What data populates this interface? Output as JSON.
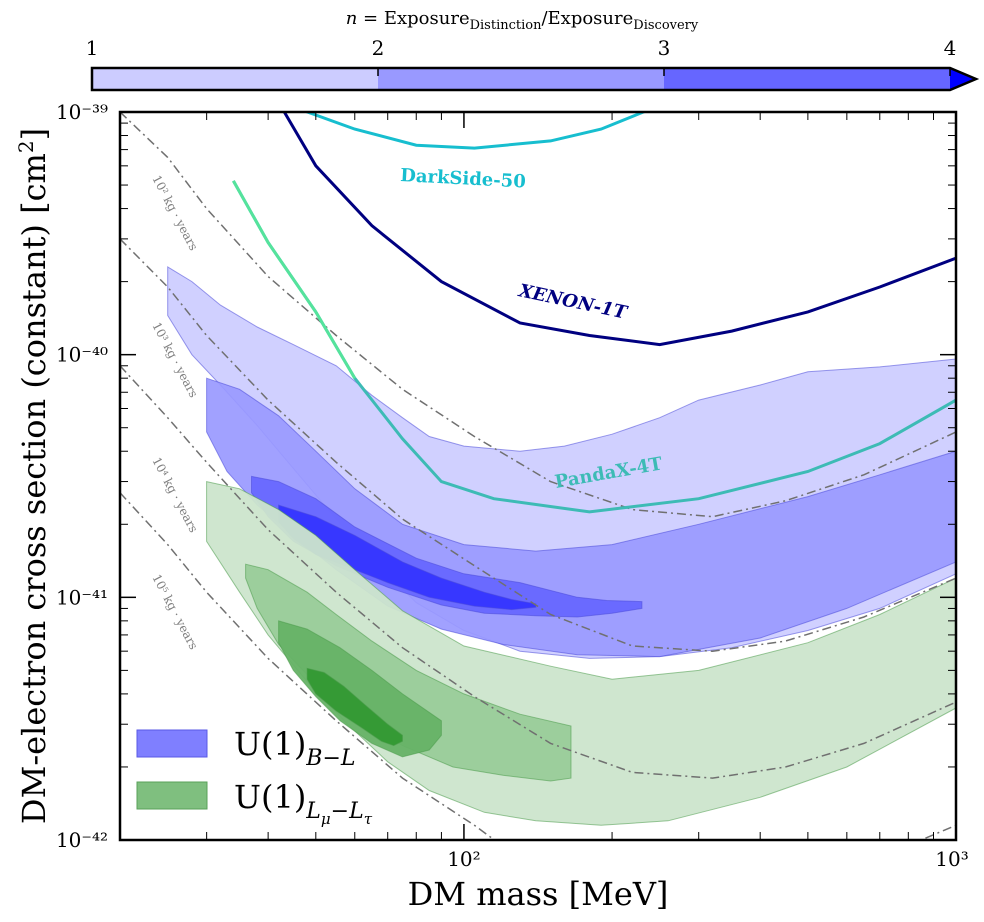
{
  "chart_data": {
    "type": "area",
    "xlabel": "DM mass [MeV]",
    "ylabel": "DM-electron cross section (constant) [cm²]",
    "xscale": "log",
    "yscale": "log",
    "xlim": [
      20,
      1000
    ],
    "ylim": [
      1e-42,
      1e-39
    ],
    "x_ticks": [
      {
        "value": 100,
        "label": "10²"
      },
      {
        "value": 1000,
        "label": "10³"
      }
    ],
    "y_ticks": [
      {
        "value": 1e-39,
        "label": "10⁻³⁹"
      },
      {
        "value": 1e-40,
        "label": "10⁻⁴⁰"
      },
      {
        "value": 1e-41,
        "label": "10⁻⁴¹"
      },
      {
        "value": 1e-42,
        "label": "10⁻⁴²"
      }
    ],
    "colorbar": {
      "title": "n = Exposure_Distinction / Exposure_Discovery",
      "ticks": [
        "1",
        "2",
        "3",
        "4"
      ],
      "colors": [
        "#ccccff",
        "#9999ff",
        "#6666ff",
        "#0000ff"
      ]
    },
    "legend": {
      "placement": "lower-left",
      "entries": [
        {
          "label": "U(1)B−L",
          "color": "#7f7fff"
        },
        {
          "label": "U(1)Lμ−Lτ",
          "color": "#7fbf7f"
        }
      ]
    },
    "experiments": [
      {
        "name": "DarkSide-50",
        "color": "#17becf",
        "points": [
          [
            45,
            1.05e-39
          ],
          [
            60,
            8.5e-40
          ],
          [
            80,
            7.3e-40
          ],
          [
            105,
            7.1e-40
          ],
          [
            150,
            7.6e-40
          ],
          [
            190,
            8.5e-40
          ],
          [
            240,
            1.03e-39
          ]
        ]
      },
      {
        "name": "XENON-1T",
        "color": "#000080",
        "points": [
          [
            40,
            1.3e-39
          ],
          [
            50,
            6e-40
          ],
          [
            65,
            3.4e-40
          ],
          [
            90,
            2e-40
          ],
          [
            130,
            1.35e-40
          ],
          [
            180,
            1.2e-40
          ],
          [
            250,
            1.1e-40
          ],
          [
            350,
            1.25e-40
          ],
          [
            500,
            1.5e-40
          ],
          [
            700,
            1.9e-40
          ],
          [
            1000,
            2.5e-40
          ]
        ]
      },
      {
        "name": "PandaX-4T",
        "color": "#3dbbb5",
        "points": [
          [
            34,
            5.2e-40
          ],
          [
            40,
            2.9e-40
          ],
          [
            50,
            1.5e-40
          ],
          [
            60,
            8e-41
          ],
          [
            75,
            4.5e-41
          ],
          [
            90,
            3e-41
          ],
          [
            115,
            2.55e-41
          ],
          [
            180,
            2.25e-41
          ],
          [
            300,
            2.55e-41
          ],
          [
            500,
            3.3e-41
          ],
          [
            700,
            4.3e-41
          ],
          [
            1000,
            6.5e-41
          ]
        ]
      }
    ],
    "exposure_contours": [
      {
        "label": "10² kg · years",
        "points": [
          [
            20,
            1e-39
          ],
          [
            25,
            6.5e-40
          ],
          [
            30,
            4e-40
          ],
          [
            40,
            2.1e-40
          ],
          [
            55,
            1.2e-40
          ],
          [
            75,
            7.2e-41
          ],
          [
            105,
            4.6e-41
          ],
          [
            150,
            3e-41
          ],
          [
            220,
            2.3e-41
          ],
          [
            320,
            2.15e-41
          ],
          [
            450,
            2.5e-41
          ],
          [
            650,
            3.2e-41
          ],
          [
            1000,
            4.8e-41
          ]
        ]
      },
      {
        "label": "10³ kg · years",
        "points": [
          [
            20,
            3e-40
          ],
          [
            25,
            1.9e-40
          ],
          [
            30,
            1.2e-40
          ],
          [
            40,
            6.5e-41
          ],
          [
            55,
            3.6e-41
          ],
          [
            75,
            2.1e-41
          ],
          [
            105,
            1.35e-41
          ],
          [
            150,
            8.5e-42
          ],
          [
            220,
            6.3e-42
          ],
          [
            320,
            6e-42
          ],
          [
            450,
            6.6e-42
          ],
          [
            650,
            8.3e-42
          ],
          [
            1000,
            1.2e-41
          ]
        ]
      },
      {
        "label": "10⁴ kg · years",
        "points": [
          [
            20,
            9e-41
          ],
          [
            25,
            5.5e-41
          ],
          [
            30,
            3.6e-41
          ],
          [
            40,
            1.9e-41
          ],
          [
            55,
            1.05e-41
          ],
          [
            75,
            6.2e-42
          ],
          [
            105,
            3.9e-42
          ],
          [
            150,
            2.5e-42
          ],
          [
            220,
            1.9e-42
          ],
          [
            320,
            1.8e-42
          ],
          [
            450,
            2e-42
          ],
          [
            650,
            2.5e-42
          ],
          [
            1000,
            3.7e-42
          ]
        ]
      },
      {
        "label": "10⁵ kg · years",
        "points": [
          [
            20,
            2.7e-41
          ],
          [
            25,
            1.65e-41
          ],
          [
            30,
            1.05e-41
          ],
          [
            40,
            5.6e-42
          ],
          [
            55,
            3.1e-42
          ],
          [
            75,
            1.8e-42
          ],
          [
            105,
            1.15e-42
          ],
          [
            140,
            7.5e-43
          ]
        ]
      },
      {
        "label": "",
        "points": [
          [
            620,
            8e-43
          ],
          [
            800,
            9.5e-43
          ],
          [
            1000,
            1.15e-42
          ]
        ]
      }
    ],
    "regions": [
      {
        "series": "U(1)B−L",
        "level": 1,
        "color": "#ccccff",
        "upper": [
          [
            25,
            2.3e-40
          ],
          [
            28,
            2e-40
          ],
          [
            32,
            1.6e-40
          ],
          [
            38,
            1.3e-40
          ],
          [
            45,
            1.1e-40
          ],
          [
            55,
            9e-41
          ],
          [
            65,
            6.8e-41
          ],
          [
            75,
            5.5e-41
          ],
          [
            85,
            4.6e-41
          ],
          [
            100,
            4.2e-41
          ],
          [
            130,
            4e-41
          ],
          [
            160,
            4.2e-41
          ],
          [
            200,
            4.7e-41
          ],
          [
            250,
            5.5e-41
          ],
          [
            300,
            6.5e-41
          ],
          [
            400,
            7.5e-41
          ],
          [
            500,
            8.5e-41
          ],
          [
            700,
            8.9e-41
          ],
          [
            1000,
            9.6e-41
          ]
        ],
        "lower": [
          [
            25,
            1.45e-40
          ],
          [
            28,
            1e-40
          ],
          [
            32,
            7.5e-41
          ],
          [
            38,
            5.1e-41
          ],
          [
            45,
            3.4e-41
          ],
          [
            55,
            2.1e-41
          ],
          [
            65,
            1.45e-41
          ],
          [
            80,
            9.5e-42
          ],
          [
            100,
            7.3e-42
          ],
          [
            130,
            6e-42
          ],
          [
            180,
            5.6e-42
          ],
          [
            250,
            5.7e-42
          ],
          [
            350,
            6.2e-42
          ],
          [
            500,
            7.3e-42
          ],
          [
            700,
            9e-42
          ],
          [
            1000,
            1.25e-41
          ]
        ]
      },
      {
        "series": "U(1)B−L",
        "level": 2,
        "color": "#9999ff",
        "upper": [
          [
            30,
            8e-41
          ],
          [
            35,
            7.2e-41
          ],
          [
            42,
            5.6e-41
          ],
          [
            50,
            4e-41
          ],
          [
            60,
            2.8e-41
          ],
          [
            75,
            2e-41
          ],
          [
            100,
            1.65e-41
          ],
          [
            140,
            1.55e-41
          ],
          [
            200,
            1.65e-41
          ],
          [
            300,
            2e-41
          ],
          [
            500,
            2.6e-41
          ],
          [
            700,
            3.2e-41
          ],
          [
            1000,
            4e-41
          ]
        ],
        "lower": [
          [
            30,
            4.8e-41
          ],
          [
            33,
            3.3e-41
          ],
          [
            38,
            2.4e-41
          ],
          [
            45,
            1.8e-41
          ],
          [
            55,
            1.3e-41
          ],
          [
            70,
            9.2e-42
          ],
          [
            90,
            7.4e-42
          ],
          [
            120,
            6.4e-42
          ],
          [
            170,
            5.8e-42
          ],
          [
            250,
            5.7e-42
          ],
          [
            400,
            6.8e-42
          ],
          [
            600,
            9e-42
          ],
          [
            1000,
            1.4e-41
          ]
        ]
      },
      {
        "series": "U(1)B−L",
        "level": 3,
        "color": "#6666ff",
        "upper": [
          [
            37,
            3.15e-41
          ],
          [
            42,
            3e-41
          ],
          [
            50,
            2.55e-41
          ],
          [
            60,
            1.95e-41
          ],
          [
            80,
            1.45e-41
          ],
          [
            100,
            1.25e-41
          ],
          [
            130,
            1.15e-41
          ],
          [
            170,
            1e-41
          ],
          [
            195,
            9.7e-42
          ],
          [
            230,
            9.6e-42
          ]
        ],
        "lower": [
          [
            37,
            2.7e-41
          ],
          [
            40,
            2.15e-41
          ],
          [
            45,
            1.7e-41
          ],
          [
            55,
            1.35e-41
          ],
          [
            70,
            1.1e-41
          ],
          [
            90,
            9.3e-42
          ],
          [
            110,
            8.6e-42
          ],
          [
            140,
            8.4e-42
          ],
          [
            170,
            8.3e-42
          ],
          [
            200,
            8.6e-42
          ],
          [
            230,
            9e-42
          ]
        ]
      },
      {
        "series": "U(1)B−L",
        "level": 4,
        "color": "#3333ff",
        "upper": [
          [
            42,
            2.4e-41
          ],
          [
            50,
            2.15e-41
          ],
          [
            60,
            1.8e-41
          ],
          [
            75,
            1.4e-41
          ],
          [
            90,
            1.2e-41
          ],
          [
            110,
            1.05e-41
          ],
          [
            125,
            9.8e-42
          ],
          [
            140,
            9.4e-42
          ]
        ],
        "lower": [
          [
            42,
            2.05e-41
          ],
          [
            45,
            1.75e-41
          ],
          [
            50,
            1.5e-41
          ],
          [
            60,
            1.3e-41
          ],
          [
            70,
            1.15e-41
          ],
          [
            85,
            1e-41
          ],
          [
            105,
            9.2e-42
          ],
          [
            125,
            8.9e-42
          ],
          [
            140,
            9.1e-42
          ]
        ]
      },
      {
        "series": "U(1)Lμ−Lτ",
        "level": 1,
        "color": "#cce5cc",
        "upper": [
          [
            30,
            3e-41
          ],
          [
            35,
            2.8e-41
          ],
          [
            42,
            2.3e-41
          ],
          [
            50,
            1.8e-41
          ],
          [
            60,
            1.3e-41
          ],
          [
            75,
            8.8e-42
          ],
          [
            100,
            6.3e-42
          ],
          [
            150,
            5.2e-42
          ],
          [
            200,
            4.6e-42
          ],
          [
            300,
            5e-42
          ],
          [
            500,
            6.5e-42
          ],
          [
            700,
            8.5e-42
          ],
          [
            1000,
            1.2e-41
          ]
        ],
        "lower": [
          [
            30,
            1.7e-41
          ],
          [
            35,
            1.05e-41
          ],
          [
            40,
            7e-42
          ],
          [
            48,
            4.5e-42
          ],
          [
            58,
            3e-42
          ],
          [
            70,
            2.1e-42
          ],
          [
            85,
            1.6e-42
          ],
          [
            110,
            1.3e-42
          ],
          [
            140,
            1.2e-42
          ],
          [
            190,
            1.15e-42
          ],
          [
            260,
            1.2e-42
          ],
          [
            400,
            1.5e-42
          ],
          [
            600,
            2e-42
          ],
          [
            1000,
            3.5e-42
          ]
        ]
      },
      {
        "series": "U(1)Lμ−Lτ",
        "level": 2,
        "color": "#99cc99",
        "upper": [
          [
            36,
            1.37e-41
          ],
          [
            40,
            1.3e-41
          ],
          [
            48,
            1.05e-41
          ],
          [
            55,
            8.5e-42
          ],
          [
            65,
            6.6e-42
          ],
          [
            80,
            5e-42
          ],
          [
            100,
            4e-42
          ],
          [
            130,
            3.3e-42
          ],
          [
            165,
            2.95e-42
          ]
        ],
        "lower": [
          [
            36,
            1.2e-41
          ],
          [
            38,
            9e-42
          ],
          [
            42,
            6.4e-42
          ],
          [
            50,
            4.4e-42
          ],
          [
            60,
            3.3e-42
          ],
          [
            75,
            2.45e-42
          ],
          [
            95,
            2e-42
          ],
          [
            120,
            1.85e-42
          ],
          [
            150,
            1.75e-42
          ],
          [
            165,
            1.8e-42
          ]
        ]
      },
      {
        "series": "U(1)Lμ−Lτ",
        "level": 3,
        "color": "#66b266",
        "upper": [
          [
            42,
            8e-42
          ],
          [
            48,
            7.4e-42
          ],
          [
            56,
            6.2e-42
          ],
          [
            65,
            5e-42
          ],
          [
            75,
            4e-42
          ],
          [
            90,
            3.1e-42
          ]
        ],
        "lower": [
          [
            42,
            6.5e-42
          ],
          [
            45,
            5e-42
          ],
          [
            50,
            3.9e-42
          ],
          [
            56,
            3.1e-42
          ],
          [
            65,
            2.5e-42
          ],
          [
            75,
            2.2e-42
          ],
          [
            85,
            2.35e-42
          ],
          [
            90,
            2.7e-42
          ]
        ]
      },
      {
        "series": "U(1)Lμ−Lτ",
        "level": 4,
        "color": "#339933",
        "upper": [
          [
            48,
            5.1e-42
          ],
          [
            52,
            4.9e-42
          ],
          [
            57,
            4.3e-42
          ],
          [
            63,
            3.6e-42
          ],
          [
            70,
            3e-42
          ],
          [
            75,
            2.7e-42
          ]
        ],
        "lower": [
          [
            48,
            4.6e-42
          ],
          [
            50,
            4e-42
          ],
          [
            55,
            3.4e-42
          ],
          [
            62,
            2.9e-42
          ],
          [
            68,
            2.55e-42
          ],
          [
            72,
            2.45e-42
          ],
          [
            75,
            2.55e-42
          ]
        ]
      }
    ]
  }
}
